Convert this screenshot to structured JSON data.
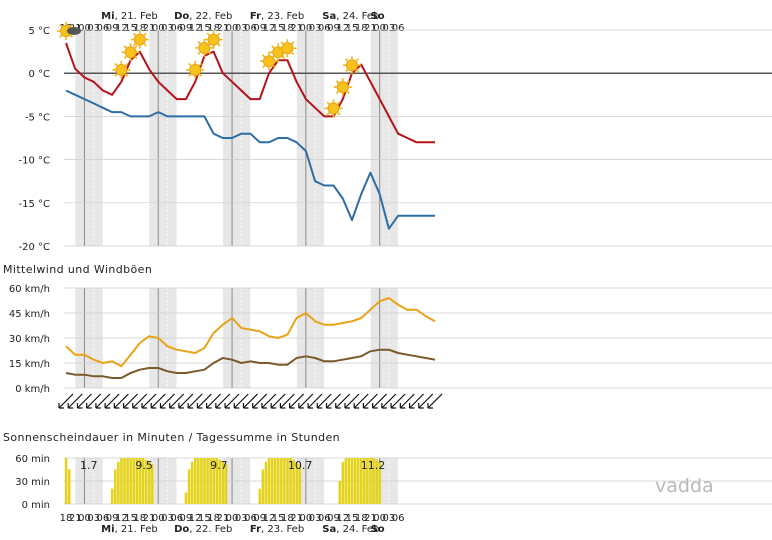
{
  "days": [
    {
      "label": "Mi, 21. Feb",
      "bold": "Mi",
      "rest": ", 21. Feb"
    },
    {
      "label": "Do, 22. Feb",
      "bold": "Do",
      "rest": ", 22. Feb"
    },
    {
      "label": "Fr, 23. Feb",
      "bold": "Fr",
      "rest": ", 23. Feb"
    },
    {
      "label": "Sa, 24. Feb",
      "bold": "Sa",
      "rest": ", 24. Feb"
    },
    {
      "label": "So",
      "bold": "So",
      "rest": ""
    }
  ],
  "hour_ticks": [
    "18",
    "21",
    "00",
    "03",
    "06",
    "09",
    "12",
    "15",
    "18",
    "21",
    "00",
    "03",
    "06",
    "09",
    "12",
    "15",
    "18",
    "21",
    "00",
    "03",
    "06",
    "09",
    "12",
    "15",
    "18",
    "21",
    "00",
    "03",
    "06",
    "09",
    "12",
    "15",
    "18",
    "21",
    "00",
    "03",
    "06"
  ],
  "colors": {
    "temperature": "#b5121b",
    "dewpoint": "#2e6da4",
    "gust": "#e8a317",
    "mean_wind": "#7a5a2a",
    "sunshine": "#e5d21b",
    "night_band": "#e7e7e7",
    "grid": "#cccccc",
    "zero_line": "#555555"
  },
  "brand": "vadda",
  "chart_data": [
    {
      "type": "line",
      "name": "temperature-forecast",
      "x_hours": [
        18,
        21,
        24,
        27,
        30,
        33,
        36,
        39,
        42,
        45,
        48,
        51,
        54,
        57,
        60,
        63,
        66,
        69,
        72,
        75,
        78,
        81,
        84,
        87,
        90,
        93,
        96,
        99,
        102,
        105,
        108,
        111,
        114,
        117,
        120,
        123,
        126,
        129,
        132,
        135,
        138
      ],
      "ylim": [
        -20,
        5
      ],
      "y_ticks": [
        "5 °C",
        "0 °C",
        "-5 °C",
        "-10 °C",
        "-15 °C",
        "-20 °C"
      ],
      "series": [
        {
          "name": "",
          "values": [
            3.5,
            0.5,
            -0.5,
            -1,
            -2,
            -2.5,
            -1,
            1.5,
            2.5,
            0.5,
            -1,
            -2,
            -3,
            -3,
            -1,
            2,
            2.5,
            0,
            -1,
            -2,
            -3,
            -3,
            0,
            1.5,
            1.5,
            -1,
            -3,
            -4,
            -5,
            -5,
            -3,
            0,
            1,
            -1,
            -3,
            -5,
            -7,
            -7.5,
            -8,
            -8,
            -8
          ]
        },
        {
          "name": "",
          "values": [
            -2,
            -2.5,
            -3,
            -3.5,
            -4,
            -4.5,
            -4.5,
            -5,
            -5,
            -5,
            -4.5,
            -5,
            -5,
            -5,
            -5,
            -5,
            -7,
            -7.5,
            -7.5,
            -7,
            -7,
            -8,
            -8,
            -7.5,
            -7.5,
            -8,
            -9,
            -12.5,
            -13,
            -13,
            -14.5,
            -17,
            -14,
            -11.5,
            -14,
            -18,
            -16.5,
            -16.5,
            -16.5,
            -16.5,
            -16.5
          ]
        }
      ],
      "weather_icons": [
        "sun",
        "moon",
        "moon",
        "moon",
        "moon",
        "moon",
        "sun",
        "sun",
        "sun",
        "moon",
        "moon",
        "moon",
        "moon",
        "moon",
        "sun",
        "sun",
        "sun",
        "moon",
        "moon",
        "moon",
        "moon",
        "moon",
        "sun",
        "sun",
        "sun",
        "moon",
        "moon",
        "moon",
        "moon",
        "sun",
        "sun",
        "sun",
        "moon",
        "moon",
        "moon",
        "moon",
        "moon"
      ]
    },
    {
      "type": "line",
      "name": "wind",
      "title": "Mittelwind und Windböen",
      "x_hours": [
        18,
        21,
        24,
        27,
        30,
        33,
        36,
        39,
        42,
        45,
        48,
        51,
        54,
        57,
        60,
        63,
        66,
        69,
        72,
        75,
        78,
        81,
        84,
        87,
        90,
        93,
        96,
        99,
        102,
        105,
        108,
        111,
        114,
        117,
        120,
        123,
        126,
        129,
        132,
        135,
        138
      ],
      "ylim": [
        0,
        60
      ],
      "y_ticks": [
        "60 km/h",
        "45 km/h",
        "30 km/h",
        "15 km/h",
        "0 km/h"
      ],
      "series": [
        {
          "name": "",
          "values": [
            25,
            20,
            20,
            17,
            15,
            16,
            13,
            20,
            27,
            31,
            30,
            25,
            23,
            22,
            21,
            24,
            33,
            38,
            42,
            36,
            35,
            34,
            31,
            30,
            32,
            42,
            45,
            40,
            38,
            38,
            39,
            40,
            42,
            47,
            52,
            54,
            50,
            47,
            47,
            43,
            40
          ]
        },
        {
          "name": "",
          "values": [
            9,
            8,
            8,
            7,
            7,
            6,
            6,
            9,
            11,
            12,
            12,
            10,
            9,
            9,
            10,
            11,
            15,
            18,
            17,
            15,
            16,
            15,
            15,
            14,
            14,
            18,
            19,
            18,
            16,
            16,
            17,
            18,
            19,
            22,
            23,
            23,
            21,
            20,
            19,
            18,
            17
          ]
        }
      ],
      "wind_direction": "south-west"
    },
    {
      "type": "bar",
      "name": "sunshine",
      "title": "Sonnenscheindauer in Minuten / Tagessumme in Stunden",
      "ylim": [
        0,
        60
      ],
      "y_ticks": [
        "60 min",
        "30 min",
        "0 min"
      ],
      "daily_totals": [
        "1.7",
        "9.5",
        "9.7",
        "10.7",
        "11.2"
      ],
      "x_hours": [
        18,
        19,
        20,
        21,
        22,
        23,
        24,
        25,
        26,
        27,
        28,
        29,
        30,
        31,
        32,
        33,
        34,
        35,
        36,
        37,
        38,
        39,
        40,
        41,
        42,
        43,
        44,
        45,
        46,
        47,
        48,
        49,
        50,
        51,
        52,
        53,
        54,
        55,
        56,
        57,
        58,
        59,
        60,
        61,
        62,
        63,
        64,
        65,
        66,
        67,
        68,
        69,
        70,
        71,
        72,
        73,
        74,
        75,
        76,
        77,
        78,
        79,
        80,
        81,
        82,
        83,
        84,
        85,
        86,
        87,
        88,
        89,
        90,
        91,
        92,
        93,
        94,
        95,
        96,
        97,
        98,
        99,
        100,
        101,
        102,
        103,
        104,
        105,
        106,
        107,
        108,
        109,
        110,
        111,
        112,
        113,
        114,
        115,
        116,
        117,
        118,
        119,
        120
      ],
      "values": [
        60,
        45,
        0,
        0,
        0,
        0,
        0,
        0,
        0,
        0,
        0,
        0,
        0,
        0,
        0,
        20,
        45,
        55,
        60,
        60,
        60,
        60,
        60,
        60,
        60,
        60,
        58,
        55,
        52,
        0,
        0,
        0,
        0,
        0,
        0,
        0,
        0,
        0,
        0,
        15,
        45,
        55,
        60,
        60,
        60,
        60,
        60,
        60,
        60,
        60,
        58,
        55,
        52,
        0,
        0,
        0,
        0,
        0,
        0,
        0,
        0,
        0,
        0,
        20,
        45,
        55,
        60,
        60,
        60,
        60,
        60,
        60,
        60,
        60,
        58,
        55,
        52,
        0,
        0,
        0,
        0,
        0,
        0,
        0,
        0,
        0,
        0,
        0,
        0,
        30,
        55,
        60,
        60,
        60,
        60,
        60,
        60,
        60,
        60,
        60,
        60,
        58,
        55
      ]
    }
  ]
}
